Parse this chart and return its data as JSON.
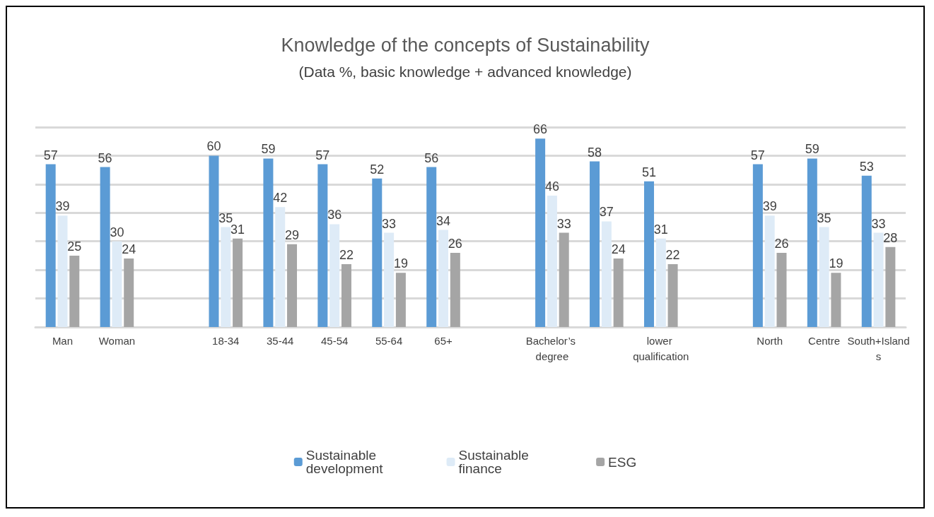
{
  "chart_data": {
    "type": "bar",
    "title": "Knowledge of the concepts of Sustainability",
    "subtitle": "(Data %, basic knowledge + advanced knowledge)",
    "categories": [
      "Man",
      "Woman",
      null,
      "18-34",
      "35-44",
      "45-54",
      "55-64",
      "65+",
      null,
      "Bachelor’s degree",
      null,
      "lower qualification",
      null,
      "North",
      "Centre",
      "South+Islands"
    ],
    "series": [
      {
        "name": "Sustainable development",
        "color": "#5b9bd5",
        "values": [
          57,
          56,
          null,
          60,
          59,
          57,
          52,
          56,
          null,
          66,
          58,
          51,
          null,
          57,
          59,
          53
        ]
      },
      {
        "name": "Sustainable finance",
        "color": "#deebf7",
        "values": [
          39,
          30,
          null,
          35,
          42,
          36,
          33,
          34,
          null,
          46,
          37,
          31,
          null,
          39,
          35,
          33
        ]
      },
      {
        "name": "ESG",
        "color": "#a5a5a5",
        "values": [
          25,
          24,
          null,
          31,
          29,
          22,
          19,
          26,
          null,
          33,
          24,
          22,
          null,
          26,
          19,
          28
        ]
      }
    ],
    "ylim": [
      0,
      70
    ],
    "yticks": [
      {
        "value": 0,
        "label": null
      },
      {
        "value": 10,
        "label": null
      },
      {
        "value": 20,
        "label": null
      },
      {
        "value": 30,
        "label": null
      },
      {
        "value": 40,
        "label": null
      },
      {
        "value": 50,
        "label": null
      },
      {
        "value": 60,
        "label": null
      },
      {
        "value": 70,
        "label": null
      }
    ],
    "tick_labels": "x",
    "grid": "y",
    "legend": "bottom",
    "data_labels": true
  }
}
